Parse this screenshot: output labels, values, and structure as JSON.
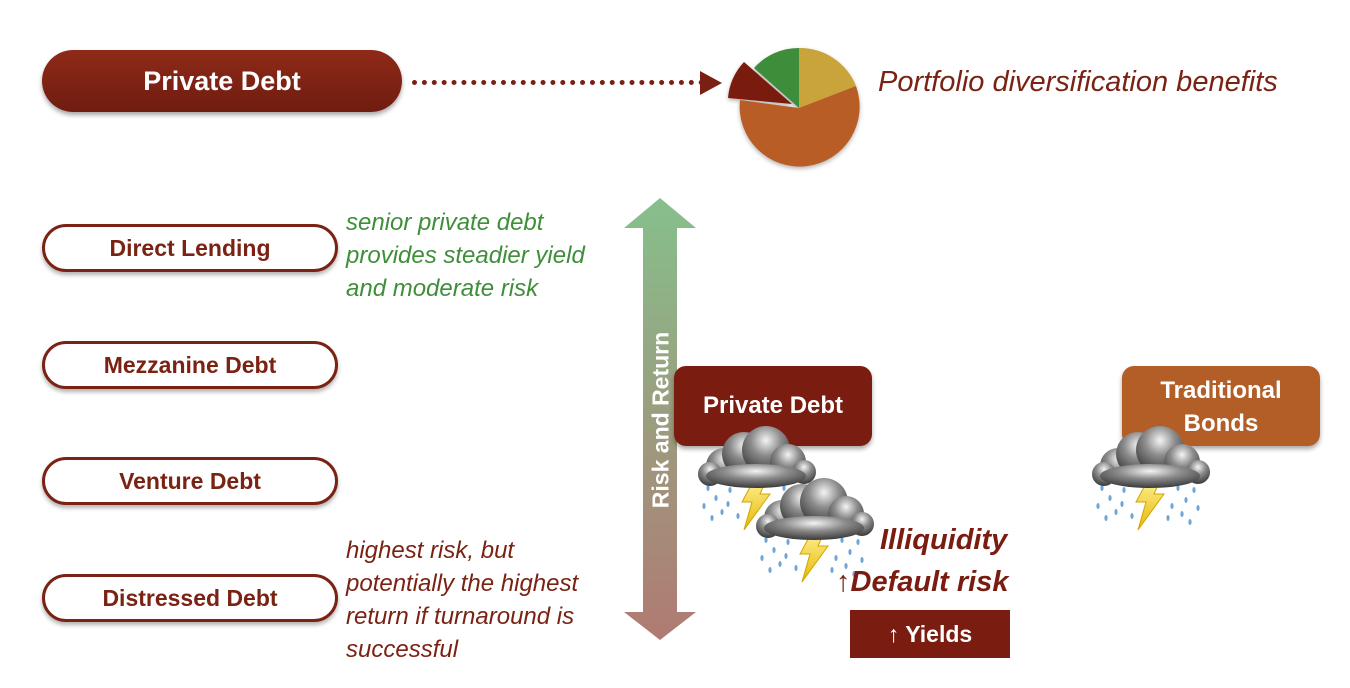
{
  "header": {
    "main_label": "Private Debt",
    "diversification_label": "Portfolio diversification benefits"
  },
  "pie_icon": {
    "slice_colors": [
      "#c9a43a",
      "#b95d27",
      "#7a1c10",
      "#3d8d3a"
    ],
    "highlighted_slice_color": "#7a1c10"
  },
  "categories": [
    {
      "label": "Direct Lending"
    },
    {
      "label": "Mezzanine Debt"
    },
    {
      "label": "Venture Debt"
    },
    {
      "label": "Distressed Debt"
    }
  ],
  "notes": {
    "top_lines": [
      "senior private debt",
      "provides steadier yield",
      "and moderate risk"
    ],
    "bottom_lines": [
      "highest risk, but",
      "potentially the highest",
      "return if turnaround is",
      "successful"
    ]
  },
  "axis": {
    "label": "Risk and Return",
    "top_color": "#86c08c",
    "bottom_color": "#b07a72"
  },
  "comparison": {
    "private_debt_label": "Private Debt",
    "traditional_bonds_lines": [
      "Traditional",
      "Bonds"
    ],
    "private_debt_color": "#7a1c10",
    "traditional_bonds_color": "#b45e27"
  },
  "risks": {
    "illiquidity": "Illiquidity",
    "up_arrow": "↑",
    "default_risk": "Default risk",
    "yields": "Yields"
  },
  "icons": {
    "storm": "storm-cloud-icon",
    "arrow": "dotted-arrow-icon",
    "pie": "pie-chart-icon"
  }
}
